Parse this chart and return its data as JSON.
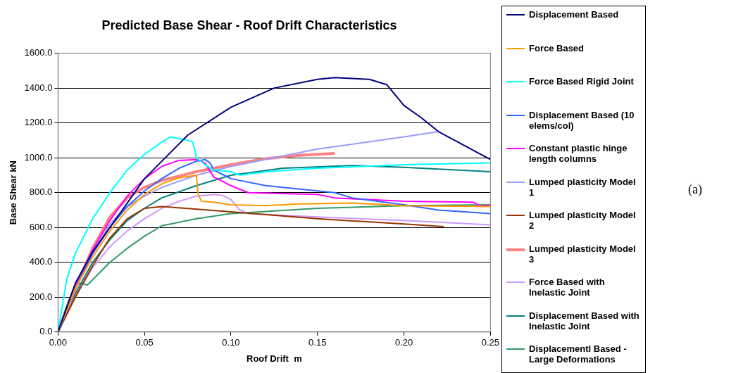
{
  "chart_data": {
    "type": "line",
    "title": "Predicted Base Shear - Roof Drift Characteristics",
    "xlabel": "Roof Drift  m",
    "ylabel": "Base Shear kN",
    "xlim": [
      0,
      0.25
    ],
    "xticks": [
      {
        "value": 0,
        "label": "0.00"
      },
      {
        "value": 0.05,
        "label": "0.05"
      },
      {
        "value": 0.1,
        "label": "0.10"
      },
      {
        "value": 0.15,
        "label": "0.15"
      },
      {
        "value": 0.2,
        "label": "0.20"
      },
      {
        "value": 0.25,
        "label": "0.25"
      }
    ],
    "ylim": [
      0,
      1600
    ],
    "yticks": [
      {
        "value": 0,
        "label": "0.0"
      },
      {
        "value": 200,
        "label": "200.0"
      },
      {
        "value": 400,
        "label": "400.0"
      },
      {
        "value": 600,
        "label": "600.0"
      },
      {
        "value": 800,
        "label": "800.0"
      },
      {
        "value": 1000,
        "label": "1000.0"
      },
      {
        "value": 1200,
        "label": "1200.0"
      },
      {
        "value": 1400,
        "label": "1400.0"
      },
      {
        "value": 1600,
        "label": "1600.0"
      }
    ],
    "grid": "y",
    "legend": "right",
    "marker": "none",
    "line_style": "solid",
    "annotations": [
      "(a)"
    ],
    "series": [
      {
        "name": "Displacement Based",
        "color": "#000080",
        "x": [
          0,
          0.01,
          0.02,
          0.03,
          0.04,
          0.05,
          0.075,
          0.1,
          0.125,
          0.15,
          0.16,
          0.18,
          0.19,
          0.2,
          0.21,
          0.22,
          0.25
        ],
        "values": [
          0,
          280,
          460,
          600,
          740,
          880,
          1130,
          1290,
          1400,
          1450,
          1460,
          1450,
          1420,
          1300,
          1230,
          1150,
          990
        ]
      },
      {
        "name": "Force Based",
        "color": "#ff9900",
        "x": [
          0,
          0.01,
          0.02,
          0.03,
          0.04,
          0.05,
          0.06,
          0.07,
          0.08,
          0.081,
          0.083,
          0.09,
          0.1,
          0.12,
          0.14,
          0.17,
          0.2,
          0.25
        ],
        "values": [
          0,
          250,
          430,
          580,
          700,
          790,
          850,
          885,
          900,
          790,
          750,
          745,
          730,
          725,
          735,
          740,
          725,
          720
        ]
      },
      {
        "name": "Force Based Rigid Joint",
        "color": "#00ffff",
        "x": [
          0,
          0.005,
          0.01,
          0.02,
          0.03,
          0.04,
          0.05,
          0.06,
          0.065,
          0.07,
          0.075,
          0.078,
          0.08,
          0.085,
          0.09,
          0.1,
          0.105,
          0.12,
          0.15,
          0.2,
          0.25
        ],
        "values": [
          0,
          300,
          450,
          650,
          800,
          930,
          1020,
          1090,
          1120,
          1110,
          1100,
          1090,
          1000,
          960,
          930,
          920,
          900,
          920,
          940,
          960,
          970
        ]
      },
      {
        "name": "Displacement Based (10 elems/col)",
        "color": "#3366ff",
        "x": [
          0,
          0.01,
          0.02,
          0.03,
          0.04,
          0.05,
          0.06,
          0.07,
          0.08,
          0.085,
          0.088,
          0.09,
          0.1,
          0.12,
          0.15,
          0.16,
          0.17,
          0.2,
          0.22,
          0.25
        ],
        "values": [
          0,
          250,
          450,
          600,
          720,
          810,
          880,
          940,
          980,
          990,
          970,
          930,
          880,
          840,
          810,
          800,
          770,
          730,
          700,
          680
        ]
      },
      {
        "name": "Constant plastic hinge length columns",
        "color": "#ff00ff",
        "x": [
          0,
          0.01,
          0.02,
          0.03,
          0.04,
          0.05,
          0.06,
          0.07,
          0.08,
          0.085,
          0.09,
          0.1,
          0.11,
          0.15,
          0.16,
          0.2,
          0.24,
          0.245,
          0.25
        ],
        "values": [
          0,
          270,
          470,
          640,
          780,
          880,
          950,
          985,
          990,
          970,
          890,
          840,
          800,
          790,
          770,
          750,
          745,
          720,
          730
        ]
      },
      {
        "name": "Lumped plasticity Model 1",
        "color": "#9999ff",
        "x": [
          0,
          0.01,
          0.02,
          0.03,
          0.04,
          0.05,
          0.06,
          0.08,
          0.1,
          0.15,
          0.2,
          0.22
        ],
        "values": [
          0,
          250,
          450,
          620,
          720,
          780,
          830,
          900,
          950,
          1050,
          1120,
          1150
        ]
      },
      {
        "name": "Lumped plasticity Model 2",
        "color": "#993300",
        "x": [
          0,
          0.01,
          0.02,
          0.03,
          0.04,
          0.05,
          0.06,
          0.1,
          0.15,
          0.2,
          0.223
        ],
        "values": [
          0,
          200,
          380,
          540,
          650,
          710,
          720,
          690,
          650,
          620,
          605
        ]
      },
      {
        "name": "Lumped plasticity Model 3",
        "color": "#ff8080",
        "x": [
          0,
          0.01,
          0.02,
          0.03,
          0.04,
          0.05,
          0.06,
          0.08,
          0.1,
          0.12,
          0.14,
          0.16
        ],
        "values": [
          0,
          250,
          480,
          660,
          770,
          830,
          870,
          920,
          960,
          995,
          1015,
          1025
        ]
      },
      {
        "name": "Force Based with Inelastic Joint",
        "color": "#cc99ff",
        "x": [
          0,
          0.01,
          0.02,
          0.03,
          0.04,
          0.05,
          0.06,
          0.07,
          0.08,
          0.09,
          0.095,
          0.1,
          0.105,
          0.11,
          0.15,
          0.2,
          0.25
        ],
        "values": [
          0,
          200,
          370,
          490,
          580,
          650,
          710,
          750,
          780,
          790,
          785,
          760,
          700,
          680,
          660,
          640,
          615
        ]
      },
      {
        "name": "Displacement Based with Inelastic Joint",
        "color": "#008080",
        "x": [
          0,
          0.01,
          0.02,
          0.03,
          0.04,
          0.05,
          0.06,
          0.08,
          0.1,
          0.13,
          0.17,
          0.2,
          0.25
        ],
        "values": [
          0,
          220,
          400,
          530,
          640,
          710,
          770,
          840,
          900,
          940,
          955,
          945,
          920
        ]
      },
      {
        "name": "Displacementl Based - Large Deformations",
        "color": "#339966",
        "x": [
          0,
          0.005,
          0.01,
          0.013,
          0.017,
          0.02,
          0.03,
          0.04,
          0.05,
          0.06,
          0.08,
          0.1,
          0.15,
          0.2,
          0.25
        ],
        "values": [
          0,
          150,
          270,
          280,
          270,
          300,
          400,
          480,
          550,
          610,
          650,
          680,
          710,
          725,
          730
        ]
      }
    ]
  }
}
